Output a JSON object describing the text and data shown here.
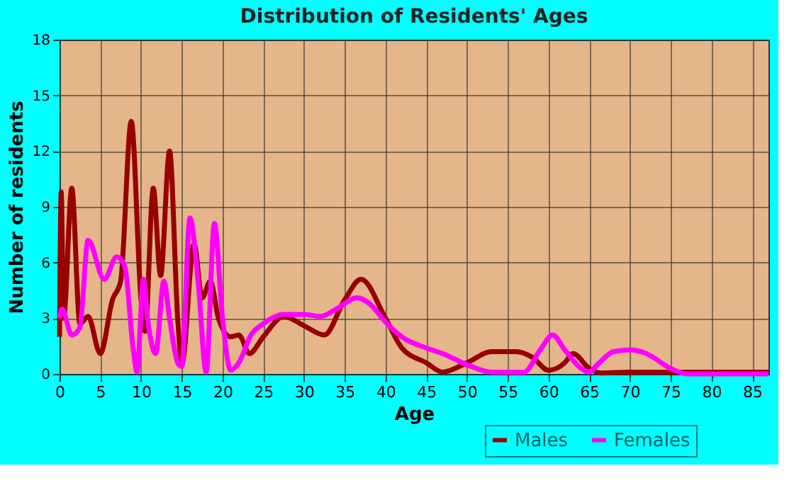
{
  "chart_data": {
    "type": "line",
    "title": "Distribution of Residents' Ages",
    "xlabel": "Age",
    "ylabel": "Number of residents",
    "xlim": [
      0,
      87
    ],
    "xticks": [
      0,
      5,
      10,
      15,
      20,
      25,
      30,
      35,
      40,
      45,
      50,
      55,
      60,
      65,
      70,
      75,
      80,
      85
    ],
    "ylim": [
      0,
      18
    ],
    "yticks": [
      0,
      3,
      6,
      9,
      12,
      15,
      18
    ],
    "grid": true,
    "legend": "bottom right",
    "line_style": "solid",
    "marker": "none",
    "series": [
      {
        "name": "Males",
        "color": "#990000",
        "x": [
          0,
          0.2,
          0.5,
          1.5,
          2.5,
          3.5,
          5,
          6.5,
          7.5,
          8.8,
          10,
          10.5,
          11.5,
          12.4,
          13.5,
          14.5,
          15,
          16.5,
          17.5,
          18.5,
          19.5,
          21,
          22,
          23.3,
          25,
          27.5,
          30,
          32.5,
          35,
          37,
          40,
          42,
          45,
          47,
          50,
          53,
          56,
          58,
          60,
          62,
          63,
          65,
          66.5,
          70,
          87
        ],
        "values": [
          2,
          9.8,
          3,
          10,
          2.7,
          3.1,
          1.1,
          4,
          5,
          13.6,
          4,
          2.3,
          10,
          5.3,
          12,
          3,
          0.5,
          7,
          4.1,
          5,
          3,
          2,
          2.1,
          1.1,
          2,
          3.1,
          2.6,
          2.1,
          4,
          5.1,
          3,
          1.4,
          0.6,
          0.1,
          0.6,
          1.2,
          1.2,
          0.9,
          0.2,
          0.6,
          1.1,
          0.3,
          0.05,
          0.1,
          0.1
        ]
      },
      {
        "name": "Females",
        "color": "#ff00ff",
        "x": [
          0,
          0.3,
          1.5,
          2.5,
          3.5,
          5.5,
          7,
          8,
          9,
          9.5,
          10.3,
          10.8,
          11.8,
          12.8,
          13.5,
          14.5,
          15,
          16,
          17,
          18,
          19,
          20,
          21,
          22,
          23.5,
          25,
          27.5,
          30,
          32,
          34,
          36.5,
          38,
          40,
          42,
          45,
          47,
          50,
          53,
          57,
          59,
          60.5,
          62,
          64,
          65,
          66,
          68,
          70,
          72,
          75,
          77,
          87
        ],
        "values": [
          3,
          3.5,
          2.1,
          2.5,
          7.2,
          5.1,
          6.3,
          5.8,
          1.5,
          0.1,
          5.1,
          3,
          1.1,
          5,
          3,
          0.6,
          0.4,
          8.4,
          5,
          0.1,
          8.1,
          3,
          0.2,
          0.6,
          2.1,
          2.7,
          3.2,
          3.2,
          3.1,
          3.5,
          4.1,
          3.8,
          2.8,
          2,
          1.4,
          1.1,
          0.5,
          0.1,
          0.1,
          1.3,
          2.1,
          1.3,
          0.3,
          0.1,
          0.5,
          1.2,
          1.3,
          1.1,
          0.3,
          0,
          0
        ]
      }
    ]
  }
}
